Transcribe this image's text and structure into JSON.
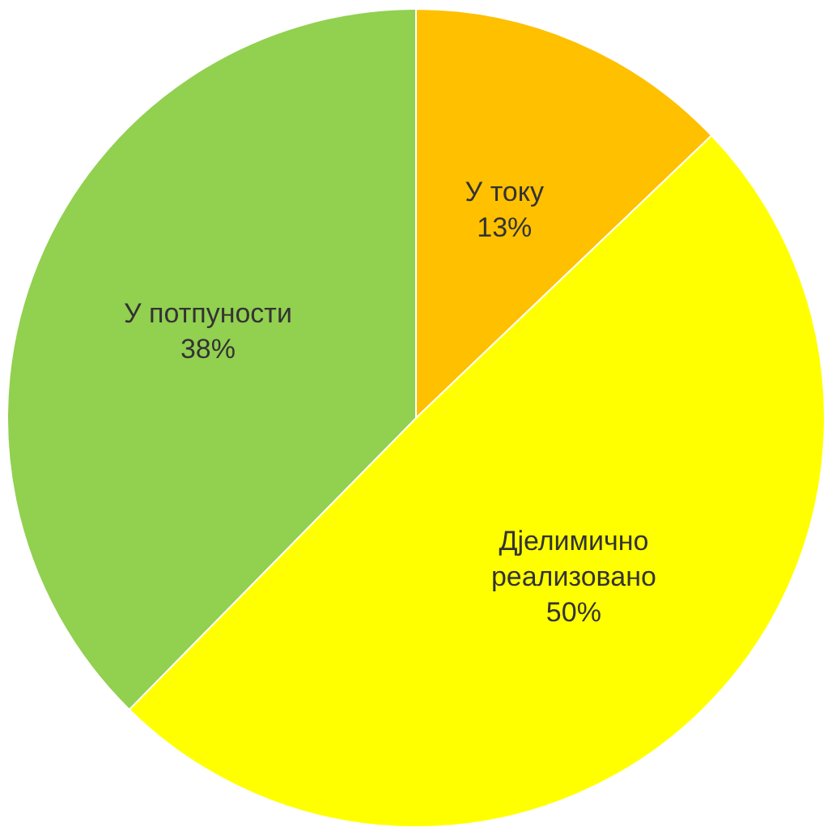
{
  "chart_data": {
    "type": "pie",
    "categories": [
      "У току",
      "Дјелимично реализовано",
      "У потпуности"
    ],
    "values": [
      13,
      50,
      38
    ],
    "colors": [
      "#ffc000",
      "#ffff00",
      "#92d050"
    ],
    "value_labels": [
      "13%",
      "50%",
      "38%"
    ],
    "legend": false
  }
}
